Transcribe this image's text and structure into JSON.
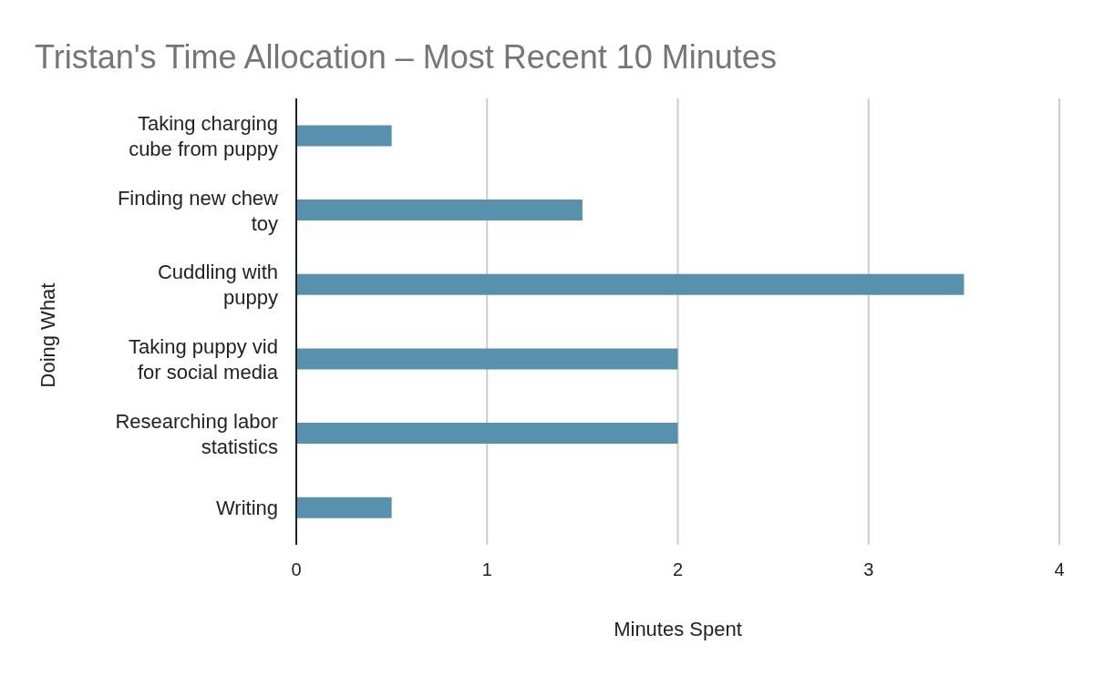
{
  "chart_data": {
    "type": "bar",
    "orientation": "horizontal",
    "title": "Tristan's Time Allocation – Most Recent 10 Minutes",
    "xlabel": "Minutes Spent",
    "ylabel": "Doing What",
    "categories": [
      "Taking charging cube from puppy",
      "Finding new chew toy",
      "Cuddling with puppy",
      "Taking puppy vid for social media",
      "Researching labor statistics",
      "Writing"
    ],
    "values": [
      0.5,
      1.5,
      3.5,
      2,
      2,
      0.5
    ],
    "color": "#5891ad",
    "xlim": [
      0,
      4
    ],
    "xticks": [
      0,
      1,
      2,
      3,
      4
    ],
    "grid": "x"
  }
}
